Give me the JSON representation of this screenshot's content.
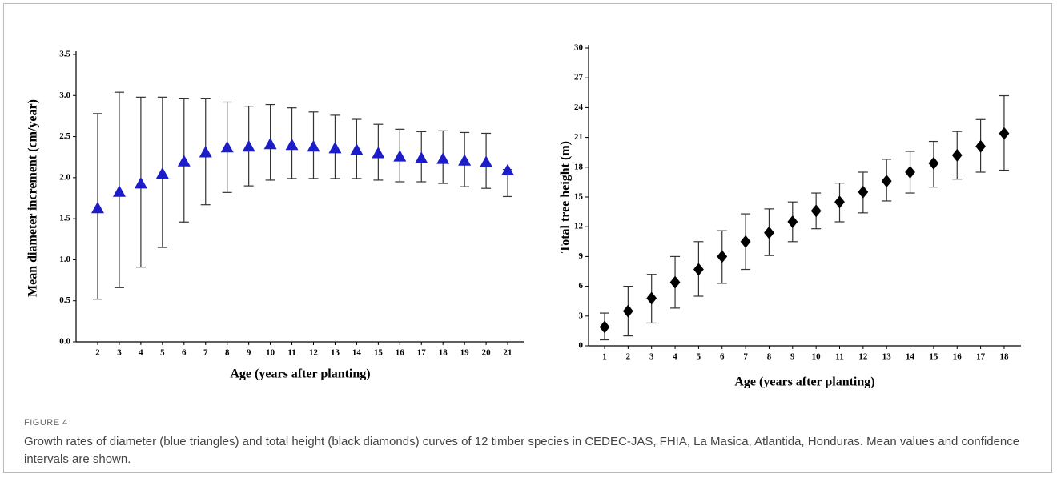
{
  "chart_data": [
    {
      "type": "point",
      "x_label": "Age (years after planting)",
      "y_label": "Mean diameter increment (cm/year)",
      "categories": [
        "2",
        "3",
        "4",
        "5",
        "6",
        "7",
        "8",
        "9",
        "10",
        "11",
        "12",
        "13",
        "14",
        "15",
        "16",
        "17",
        "18",
        "19",
        "20",
        "21"
      ],
      "values": [
        1.63,
        1.83,
        1.93,
        2.05,
        2.2,
        2.31,
        2.37,
        2.38,
        2.41,
        2.4,
        2.38,
        2.36,
        2.34,
        2.3,
        2.26,
        2.24,
        2.23,
        2.21,
        2.19,
        2.09
      ],
      "error_low": [
        0.52,
        0.66,
        0.91,
        1.15,
        1.46,
        1.67,
        1.82,
        1.9,
        1.97,
        1.99,
        1.99,
        1.99,
        1.99,
        1.97,
        1.95,
        1.95,
        1.93,
        1.89,
        1.87,
        1.77
      ],
      "error_high": [
        2.78,
        3.04,
        2.98,
        2.98,
        2.96,
        2.96,
        2.92,
        2.87,
        2.89,
        2.85,
        2.8,
        2.76,
        2.71,
        2.65,
        2.59,
        2.56,
        2.57,
        2.55,
        2.54,
        2.1
      ],
      "marker": "triangle",
      "color": "#1c1cc8",
      "ylim": [
        0,
        3.5
      ],
      "yticks": [
        {
          "value": 0,
          "label": "0.0"
        },
        {
          "value": 0.5,
          "label": "0.5"
        },
        {
          "value": 1,
          "label": "1.0"
        },
        {
          "value": 1.5,
          "label": "1.5"
        },
        {
          "value": 2,
          "label": "2.0"
        },
        {
          "value": 2.5,
          "label": "2.5"
        },
        {
          "value": 3,
          "label": "3.0"
        },
        {
          "value": 3.5,
          "label": "3.5"
        }
      ]
    },
    {
      "type": "point",
      "x_label": "Age (years after planting)",
      "y_label": "Total tree height (m)",
      "categories": [
        "1",
        "2",
        "3",
        "4",
        "5",
        "6",
        "7",
        "8",
        "9",
        "10",
        "11",
        "12",
        "13",
        "14",
        "15",
        "16",
        "17",
        "18"
      ],
      "values": [
        1.9,
        3.5,
        4.8,
        6.4,
        7.7,
        9.0,
        10.5,
        11.4,
        12.5,
        13.6,
        14.5,
        15.5,
        16.6,
        17.5,
        18.4,
        19.2,
        20.1,
        21.4
      ],
      "error_low": [
        0.6,
        1.0,
        2.3,
        3.8,
        5.0,
        6.3,
        7.7,
        9.1,
        10.5,
        11.8,
        12.5,
        13.4,
        14.6,
        15.4,
        16.0,
        16.8,
        17.5,
        17.7
      ],
      "error_high": [
        3.3,
        6.0,
        7.2,
        9.0,
        10.5,
        11.6,
        13.3,
        13.8,
        14.5,
        15.4,
        16.4,
        17.5,
        18.8,
        19.6,
        20.6,
        21.6,
        22.8,
        25.2
      ],
      "marker": "diamond",
      "color": "#000000",
      "ylim": [
        0,
        30
      ],
      "yticks": [
        0,
        3,
        6,
        9,
        12,
        15,
        18,
        21,
        24,
        27,
        30
      ]
    }
  ],
  "figure": {
    "label": "FIGURE 4",
    "caption": "Growth rates of diameter (blue triangles) and total height (black diamonds) curves of 12 timber species in CEDEC-JAS, FHIA, La Masica, Atlantida, Honduras. Mean values and confidence intervals are shown."
  }
}
